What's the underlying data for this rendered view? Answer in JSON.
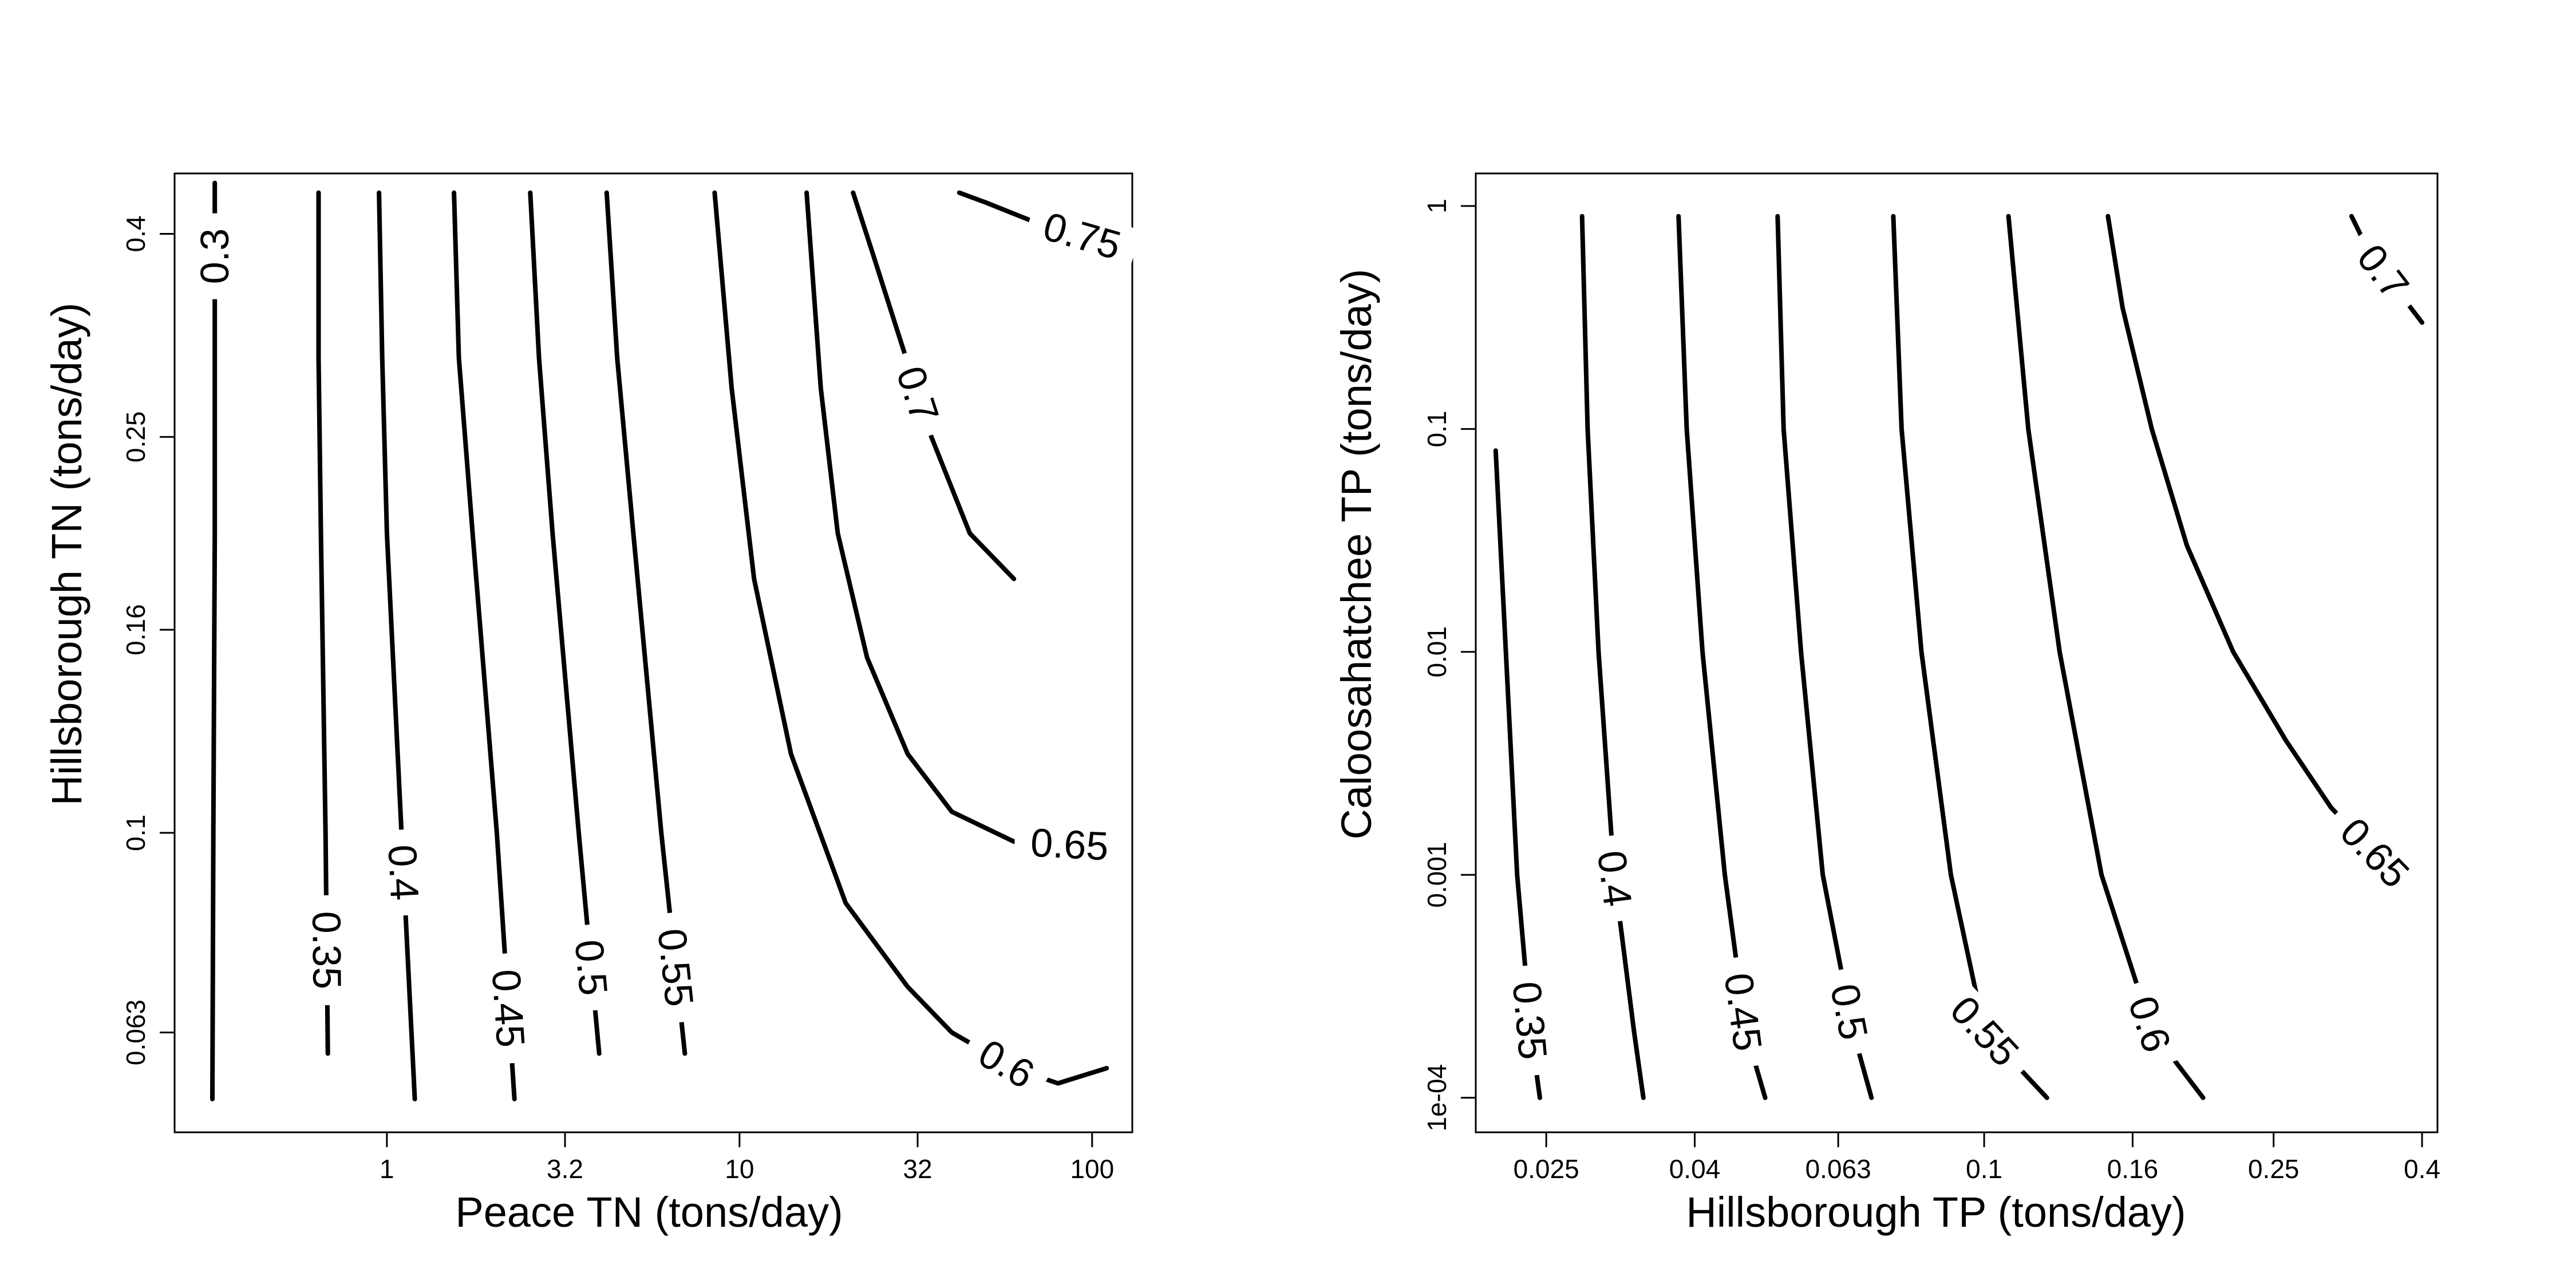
{
  "chart_data": [
    {
      "type": "contour",
      "title": "",
      "xlabel": "Peace TN (tons/day)",
      "ylabel": "Hillsborough TN (tons/day)",
      "x_scale": "log",
      "y_scale": "log",
      "xlim": [
        0.25,
        130
      ],
      "ylim": [
        0.05,
        0.46
      ],
      "x_ticks": [
        1,
        3.2,
        10,
        32,
        100
      ],
      "x_tick_labels": [
        "1",
        "3.2",
        "10",
        "32",
        "100"
      ],
      "y_ticks": [
        0.063,
        0.1,
        0.16,
        0.25,
        0.4
      ],
      "y_tick_labels": [
        "0.063",
        "0.1",
        "0.16",
        "0.25",
        "0.4"
      ],
      "contours": [
        {
          "level": "0.3",
          "points": [
            [
              0.32,
              0.054
            ],
            [
              0.322,
              0.1
            ],
            [
              0.325,
              0.2
            ],
            [
              0.325,
              0.36
            ],
            [
              0.325,
              0.45
            ]
          ]
        },
        {
          "level": "0.35",
          "points": [
            [
              0.68,
              0.06
            ],
            [
              0.67,
              0.1
            ],
            [
              0.65,
              0.2
            ],
            [
              0.64,
              0.3
            ],
            [
              0.64,
              0.44
            ]
          ]
        },
        {
          "level": "0.4",
          "points": [
            [
              1.2,
              0.054
            ],
            [
              1.1,
              0.1
            ],
            [
              1.0,
              0.2
            ],
            [
              0.97,
              0.3
            ],
            [
              0.95,
              0.44
            ]
          ]
        },
        {
          "level": "0.45",
          "points": [
            [
              2.3,
              0.054
            ],
            [
              2.05,
              0.1
            ],
            [
              1.75,
              0.2
            ],
            [
              1.6,
              0.3
            ],
            [
              1.55,
              0.44
            ]
          ]
        },
        {
          "level": "0.5",
          "points": [
            [
              4.0,
              0.06
            ],
            [
              3.5,
              0.1
            ],
            [
              2.95,
              0.2
            ],
            [
              2.7,
              0.3
            ],
            [
              2.55,
              0.44
            ]
          ]
        },
        {
          "level": "0.55",
          "points": [
            [
              7.0,
              0.06
            ],
            [
              6.0,
              0.1
            ],
            [
              5.0,
              0.2
            ],
            [
              4.5,
              0.3
            ],
            [
              4.2,
              0.44
            ]
          ]
        },
        {
          "level": "0.6",
          "points": [
            [
              110,
              0.058
            ],
            [
              80,
              0.056
            ],
            [
              60,
              0.058
            ],
            [
              40,
              0.063
            ],
            [
              30,
              0.07
            ],
            [
              20,
              0.085
            ],
            [
              14,
              0.12
            ],
            [
              11,
              0.18
            ],
            [
              9.5,
              0.28
            ],
            [
              8.5,
              0.44
            ]
          ]
        },
        {
          "level": "0.65",
          "points": [
            [
              115,
              0.1
            ],
            [
              105,
              0.097
            ],
            [
              60,
              0.098
            ],
            [
              40,
              0.105
            ],
            [
              30,
              0.12
            ],
            [
              23,
              0.15
            ],
            [
              19,
              0.2
            ],
            [
              17,
              0.28
            ],
            [
              15.5,
              0.44
            ]
          ]
        },
        {
          "level": "0.7",
          "points": [
            [
              60,
              0.18
            ],
            [
              45,
              0.2
            ],
            [
              35,
              0.25
            ],
            [
              28,
              0.32
            ],
            [
              24,
              0.38
            ],
            [
              21,
              0.44
            ]
          ]
        },
        {
          "level": "0.75",
          "points": [
            [
              115,
              0.39
            ],
            [
              70,
              0.41
            ],
            [
              50,
              0.43
            ],
            [
              42,
              0.44
            ]
          ]
        }
      ]
    },
    {
      "type": "contour",
      "title": "",
      "xlabel": "Hillsborough TP (tons/day)",
      "ylabel": "Caloosahatchee TP (tons/day)",
      "x_scale": "log",
      "y_scale": "log",
      "xlim": [
        0.02,
        0.42
      ],
      "ylim": [
        7e-05,
        1.4
      ],
      "x_ticks": [
        0.025,
        0.04,
        0.063,
        0.1,
        0.16,
        0.25,
        0.4
      ],
      "x_tick_labels": [
        "0.025",
        "0.04",
        "0.063",
        "0.1",
        "0.16",
        "0.25",
        "0.4"
      ],
      "y_ticks": [
        0.0001,
        0.001,
        0.01,
        0.1,
        1
      ],
      "y_tick_labels": [
        "1e-04",
        "0.001",
        "0.01",
        "0.1",
        "1"
      ],
      "contours": [
        {
          "level": "0.35",
          "points": [
            [
              0.0245,
              0.0001
            ],
            [
              0.0238,
              0.0002
            ],
            [
              0.0228,
              0.001
            ],
            [
              0.022,
              0.01
            ],
            [
              0.0213,
              0.08
            ]
          ]
        },
        {
          "level": "0.4",
          "points": [
            [
              0.034,
              0.0001
            ],
            [
              0.033,
              0.0002
            ],
            [
              0.031,
              0.001
            ],
            [
              0.0295,
              0.01
            ],
            [
              0.0285,
              0.1
            ],
            [
              0.028,
              0.9
            ]
          ]
        },
        {
          "level": "0.45",
          "points": [
            [
              0.05,
              0.0001
            ],
            [
              0.047,
              0.0002
            ],
            [
              0.044,
              0.001
            ],
            [
              0.041,
              0.01
            ],
            [
              0.039,
              0.1
            ],
            [
              0.038,
              0.9
            ]
          ]
        },
        {
          "level": "0.5",
          "points": [
            [
              0.07,
              0.0001
            ],
            [
              0.066,
              0.0002
            ],
            [
              0.06,
              0.001
            ],
            [
              0.056,
              0.01
            ],
            [
              0.053,
              0.1
            ],
            [
              0.052,
              0.9
            ]
          ]
        },
        {
          "level": "0.55",
          "points": [
            [
              0.122,
              0.0001
            ],
            [
              0.1,
              0.0002
            ],
            [
              0.09,
              0.001
            ],
            [
              0.082,
              0.01
            ],
            [
              0.077,
              0.1
            ],
            [
              0.075,
              0.9
            ]
          ]
        },
        {
          "level": "0.6",
          "points": [
            [
              0.2,
              0.0001
            ],
            [
              0.17,
              0.0002
            ],
            [
              0.145,
              0.001
            ],
            [
              0.127,
              0.01
            ],
            [
              0.115,
              0.1
            ],
            [
              0.108,
              0.9
            ]
          ]
        },
        {
          "level": "0.65",
          "points": [
            [
              0.38,
              0.0009
            ],
            [
              0.3,
              0.002
            ],
            [
              0.26,
              0.004
            ],
            [
              0.22,
              0.01
            ],
            [
              0.19,
              0.03
            ],
            [
              0.17,
              0.1
            ],
            [
              0.155,
              0.35
            ],
            [
              0.148,
              0.9
            ]
          ]
        },
        {
          "level": "0.7",
          "points": [
            [
              0.4,
              0.3
            ],
            [
              0.34,
              0.6
            ],
            [
              0.32,
              0.9
            ]
          ]
        }
      ]
    }
  ]
}
